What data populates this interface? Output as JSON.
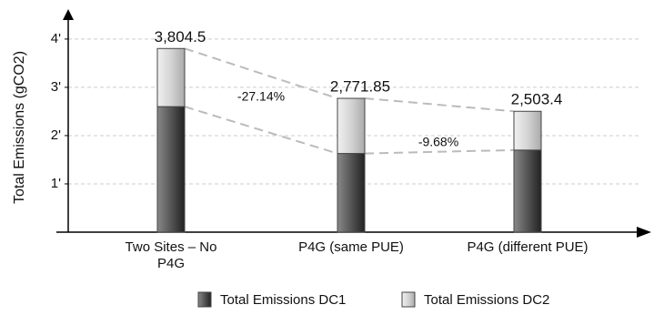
{
  "chart_data": {
    "type": "stacked_bar",
    "y_label": "Total Emissions (gCO2)",
    "categories": [
      "Two Sites – No P4G",
      "P4G (same PUE)",
      "P4G (different PUE)"
    ],
    "series": [
      {
        "name": "Total Emissions DC1",
        "color": "#555555",
        "values": [
          2600,
          1630,
          1700
        ]
      },
      {
        "name": "Total Emissions DC2",
        "color": "#d4d4d4",
        "values": [
          1204.5,
          1141.85,
          803.4
        ]
      }
    ],
    "totals": {
      "values": [
        3804.5,
        2771.85,
        2503.4
      ],
      "value_labels": [
        "3,804.5",
        "2,771.85",
        "2,503.4"
      ]
    },
    "annotations": [
      "-27.14%",
      "-9.68%"
    ],
    "ylim": [
      0,
      4300
    ],
    "yticks": [
      {
        "value": 1000,
        "label": "1'"
      },
      {
        "value": 2000,
        "label": "2'"
      },
      {
        "value": 3000,
        "label": "3'"
      },
      {
        "value": 4000,
        "label": "4'"
      }
    ],
    "grid": true,
    "legend": "bottom"
  }
}
